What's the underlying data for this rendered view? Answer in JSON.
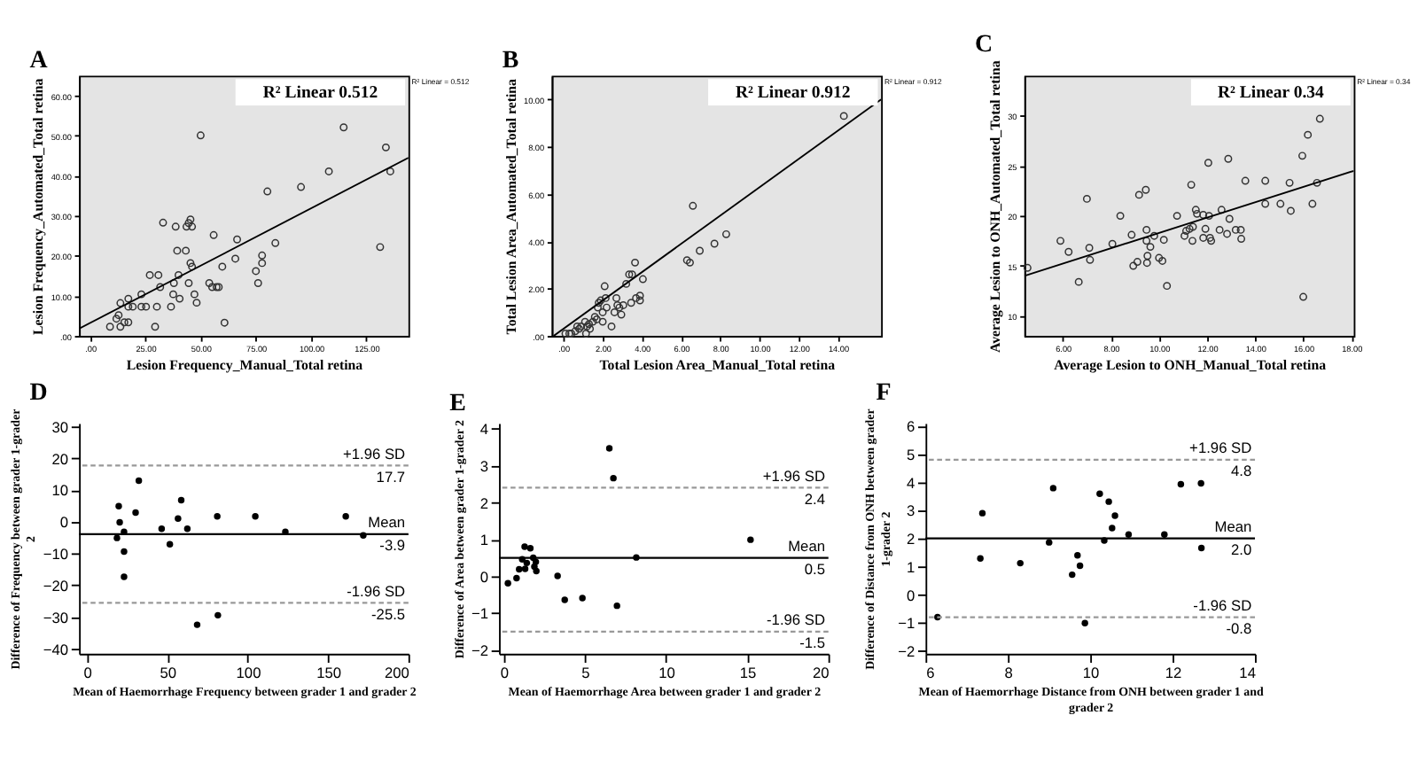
{
  "chart_data": [
    {
      "type": "scatter",
      "title": "A",
      "xlabel": "Lesion Frequency_Manual_Total retina",
      "ylabel": "Lesion Frequency_Automated_Total retina",
      "marker": "circle",
      "xlim": [
        -5,
        144
      ],
      "ylim": [
        0,
        65
      ],
      "xticks": [
        {
          "value": 0,
          "label": ".00"
        },
        {
          "value": 25,
          "label": "25.00"
        },
        {
          "value": 50,
          "label": "50.00"
        },
        {
          "value": 75,
          "label": "75.00"
        },
        {
          "value": 100,
          "label": "100.00"
        },
        {
          "value": 125,
          "label": "125.00"
        }
      ],
      "yticks": [
        {
          "value": 0,
          "label": ".00"
        },
        {
          "value": 10,
          "label": "10.00"
        },
        {
          "value": 20,
          "label": "20.00"
        },
        {
          "value": 30,
          "label": "30.00"
        },
        {
          "value": 40,
          "label": "40.00"
        },
        {
          "value": 50,
          "label": "50.00"
        },
        {
          "value": 60,
          "label": "60.00"
        }
      ],
      "series": [
        {
          "type": "scatter",
          "color": "#333333",
          "x": [
            9,
            11.9,
            12.9,
            13.7,
            13.7,
            15.5,
            17.3,
            17.3,
            17.3,
            19.3,
            23.2,
            23.2,
            25.3,
            27,
            29.4,
            30.2,
            30.9,
            31.7,
            33,
            36.6,
            37.6,
            37.9,
            38.7,
            39.4,
            40,
            40.5,
            43.3,
            43.6,
            44.6,
            45.4,
            44.6,
            45.4,
            46.1,
            46.1,
            47.2,
            48.2,
            50,
            53.9,
            55.2,
            55.9,
            57.2,
            58.2,
            59.8,
            60.8,
            65.7,
            66.5,
            75,
            76,
            77.8,
            77.8,
            80.2,
            83.8,
            95.4,
            108,
            114.7,
            131.2,
            133.8,
            135.8
          ],
          "values": [
            2.3,
            4.3,
            5.2,
            8.2,
            2.3,
            3.4,
            3.4,
            9.3,
            7.3,
            7.3,
            10.4,
            7.3,
            7.3,
            15.2,
            2.3,
            7.3,
            15.2,
            12.2,
            28.3,
            7.3,
            10.4,
            13.2,
            27.3,
            21.3,
            15.2,
            9.3,
            21.3,
            27.3,
            28.2,
            29.1,
            13.2,
            18.2,
            27.3,
            17.3,
            10.4,
            8.3,
            50.1,
            13.2,
            12.2,
            25.2,
            12.2,
            12.2,
            17.3,
            3.3,
            19.3,
            24.1,
            16.2,
            13.2,
            18.2,
            20.1,
            36.1,
            23.2,
            37.2,
            41.1,
            52.1,
            22.2,
            47.1,
            41.1
          ]
        },
        {
          "type": "line",
          "color": "#000000",
          "marker": "none",
          "x": [
            -5,
            144
          ],
          "values": [
            1.8,
            44.5
          ]
        }
      ],
      "annotations": [
        "R² Linear 0.512",
        "R² Linear = 0.512"
      ]
    },
    {
      "type": "scatter",
      "title": "B",
      "xlabel": "Total Lesion Area_Manual_Total retina",
      "ylabel": "Total Lesion Area_Automated_Total retina",
      "marker": "circle",
      "xlim": [
        -0.6,
        16.2
      ],
      "ylim": [
        0,
        11
      ],
      "xticks": [
        {
          "value": 0,
          "label": ".00"
        },
        {
          "value": 2,
          "label": "2.00"
        },
        {
          "value": 4,
          "label": "4.00"
        },
        {
          "value": 6,
          "label": "6.00"
        },
        {
          "value": 8,
          "label": "8.00"
        },
        {
          "value": 10,
          "label": "10.00"
        },
        {
          "value": 12,
          "label": "12.00"
        },
        {
          "value": 14,
          "label": "14.00"
        }
      ],
      "yticks": [
        {
          "value": 0,
          "label": ".00"
        },
        {
          "value": 2,
          "label": "2.00"
        },
        {
          "value": 4,
          "label": "4.00"
        },
        {
          "value": 6,
          "label": "6.00"
        },
        {
          "value": 8,
          "label": "8.00"
        },
        {
          "value": 10,
          "label": "10.00"
        }
      ],
      "series": [
        {
          "type": "scatter",
          "color": "#333333",
          "x": [
            0.1,
            0.3,
            0.4,
            0.6,
            0.7,
            0.8,
            0.9,
            1.1,
            1.15,
            1.2,
            1.3,
            1.35,
            1.5,
            1.6,
            1.7,
            1.75,
            1.8,
            1.9,
            2.0,
            2.0,
            2.1,
            2.15,
            2.2,
            2.45,
            2.6,
            2.7,
            2.75,
            2.85,
            2.95,
            3.05,
            3.2,
            3.35,
            3.5,
            3.65,
            3.45,
            3.7,
            3.9,
            3.9,
            4.05,
            6.3,
            6.45,
            6.95,
            6.6,
            7.7,
            8.3,
            14.3
          ],
          "values": [
            0.1,
            0.1,
            0.1,
            0.2,
            0.4,
            0.3,
            0.4,
            0.6,
            0.1,
            0.4,
            0.5,
            0.3,
            0.6,
            0.8,
            0.7,
            1.2,
            1.4,
            1.5,
            0.6,
            1.0,
            2.1,
            1.6,
            1.2,
            0.4,
            1.0,
            1.6,
            1.3,
            1.2,
            0.9,
            1.3,
            2.2,
            2.6,
            2.6,
            3.1,
            1.4,
            1.6,
            1.5,
            1.7,
            2.4,
            3.2,
            3.1,
            3.6,
            5.5,
            3.9,
            4.3,
            9.3
          ]
        },
        {
          "type": "line",
          "color": "#000000",
          "marker": "none",
          "x": [
            -0.5,
            16.2
          ],
          "values": [
            0.0,
            10.0
          ]
        }
      ],
      "annotations": [
        "R² Linear 0.912",
        "R² Linear = 0.912"
      ]
    },
    {
      "type": "scatter",
      "title": "C",
      "xlabel": "Average Lesion to ONH_Manual_Total retina",
      "ylabel": "Average Lesion to ONH_Automated_Total retina",
      "marker": "circle",
      "xlim": [
        4.4,
        18.1
      ],
      "ylim": [
        8,
        34
      ],
      "xticks": [
        {
          "value": 6,
          "label": "6.00"
        },
        {
          "value": 8,
          "label": "8.00"
        },
        {
          "value": 10,
          "label": "10.00"
        },
        {
          "value": 12,
          "label": "12.00"
        },
        {
          "value": 14,
          "label": "14.00"
        },
        {
          "value": 16,
          "label": "16.00"
        },
        {
          "value": 18,
          "label": "18.00"
        }
      ],
      "yticks": [
        10,
        15,
        20,
        25,
        30
      ],
      "series": [
        {
          "type": "scatter",
          "color": "#333333",
          "x": [
            4.53,
            5.9,
            6.24,
            6.66,
            7.0,
            7.1,
            7.13,
            8.06,
            8.39,
            8.86,
            8.93,
            9.1,
            9.17,
            9.45,
            9.48,
            9.48,
            9.5,
            9.52,
            9.64,
            9.8,
            10.0,
            10.14,
            10.2,
            10.33,
            10.75,
            11.06,
            11.13,
            11.27,
            11.34,
            11.39,
            11.41,
            11.53,
            11.58,
            11.84,
            11.84,
            11.93,
            12.05,
            12.08,
            12.12,
            12.17,
            12.52,
            12.6,
            12.83,
            12.88,
            12.93,
            13.19,
            13.4,
            13.42,
            13.59,
            14.42,
            14.42,
            15.05,
            15.43,
            15.48,
            15.96,
            16.0,
            16.19,
            16.38,
            16.57,
            16.69
          ],
          "values": [
            14.8,
            17.5,
            16.4,
            13.4,
            21.7,
            16.8,
            15.6,
            17.2,
            20.0,
            18.1,
            15.0,
            15.4,
            22.1,
            22.6,
            18.6,
            17.5,
            15.3,
            16.0,
            16.9,
            18.0,
            15.8,
            15.5,
            17.6,
            13.0,
            20.0,
            18.0,
            18.5,
            18.7,
            23.1,
            17.5,
            18.9,
            20.6,
            20.2,
            17.8,
            20.1,
            18.7,
            25.3,
            20.0,
            17.8,
            17.5,
            18.6,
            20.6,
            18.2,
            25.7,
            19.7,
            18.6,
            18.6,
            17.7,
            23.5,
            23.5,
            21.2,
            21.2,
            23.3,
            20.5,
            26.0,
            11.9,
            28.1,
            21.2,
            23.3,
            29.7
          ]
        },
        {
          "type": "line",
          "color": "#000000",
          "marker": "none",
          "x": [
            4.4,
            18.1
          ],
          "values": [
            14.0,
            24.5
          ]
        }
      ],
      "annotations": [
        "R² Linear 0.34",
        "R² Linear = 0.34"
      ]
    },
    {
      "type": "scatter",
      "title": "D",
      "xlabel": "Mean of Haemorrhage Frequency between grader 1 and grader 2",
      "ylabel": "Difference of Frequency between grader 1-grader 2",
      "marker": "circle",
      "xlim": [
        -5,
        200
      ],
      "ylim": [
        -41.5,
        31
      ],
      "xticks": [
        0,
        50,
        100,
        150,
        200
      ],
      "yticks": [
        -40,
        -30,
        -20,
        -10,
        0,
        10,
        20,
        30
      ],
      "series": [
        {
          "type": "scatter",
          "color": "#000000",
          "x": [
            18.6,
            19.7,
            20.3,
            23,
            23,
            23,
            30.2,
            32.2,
            46.4,
            51.5,
            56.6,
            58.6,
            62.4,
            68.5,
            81.4,
            81,
            104.7,
            123.4,
            161,
            171.9
          ],
          "values": [
            -5.1,
            4.9,
            -0.2,
            -3.2,
            -9.4,
            -17.3,
            2.9,
            12.9,
            -2.2,
            -7.1,
            1.0,
            6.8,
            -2.2,
            -32.4,
            -29.4,
            1.7,
            1.7,
            -3.2,
            1.7,
            -4.3
          ]
        }
      ],
      "ref_lines": [
        {
          "axis": "y",
          "value": 17.7,
          "label": "+1.96 SD",
          "color": "#999999",
          "line_style": "dashed"
        },
        {
          "axis": "y",
          "value": -3.9,
          "label": "Mean",
          "color": "#000000",
          "line_style": "solid"
        },
        {
          "axis": "y",
          "value": -25.5,
          "label": "-1.96 SD",
          "color": "#999999",
          "line_style": "dashed"
        }
      ],
      "annotations": [
        {
          "text": "17.7",
          "y": 17.7
        },
        {
          "text": "-3.9",
          "y": -3.9
        },
        {
          "text": "-25.5",
          "y": -25.5
        }
      ]
    },
    {
      "type": "scatter",
      "title": "E",
      "xlabel": "Mean of Haemorrhage Area between grader 1 and grader 2",
      "ylabel": "Difference of Area between grader 1-grader 2",
      "marker": "circle",
      "xlim": [
        -0.3,
        20
      ],
      "ylim": [
        -2.1,
        4.15
      ],
      "xticks": [
        0,
        5,
        10,
        15,
        20
      ],
      "yticks": [
        -2,
        -1,
        0,
        1,
        2,
        3,
        4
      ],
      "series": [
        {
          "type": "scatter",
          "color": "#000000",
          "x": [
            0.25,
            0.78,
            0.94,
            1.13,
            1.28,
            1.31,
            1.41,
            1.63,
            1.81,
            1.88,
            1.97,
            2.0,
            3.31,
            3.75,
            4.84,
            6.5,
            6.75,
            6.97,
            8.16,
            15.2
          ],
          "values": [
            -0.19,
            -0.05,
            0.19,
            0.46,
            0.8,
            0.2,
            0.36,
            0.76,
            0.5,
            0.26,
            0.39,
            0.14,
            0.01,
            -0.64,
            -0.59,
            3.47,
            2.66,
            -0.8,
            0.51,
            0.99
          ]
        }
      ],
      "ref_lines": [
        {
          "axis": "y",
          "value": 2.4,
          "label": "+1.96 SD",
          "color": "#999999",
          "line_style": "dashed"
        },
        {
          "axis": "y",
          "value": 0.5,
          "label": "Mean",
          "color": "#000000",
          "line_style": "solid"
        },
        {
          "axis": "y",
          "value": -1.5,
          "label": "-1.96 SD",
          "color": "#999999",
          "line_style": "dashed"
        }
      ],
      "annotations": [
        {
          "text": "2.4",
          "y": 2.4
        },
        {
          "text": "0.5",
          "y": 0.5
        },
        {
          "text": "-1.5",
          "y": -1.5
        }
      ]
    },
    {
      "type": "scatter",
      "title": "F",
      "xlabel": "Mean of Haemorrhage Distance from ONH between grader 1 and grader 2",
      "ylabel": "Difference of Distance from ONH between grader 1-grader 2",
      "marker": "circle",
      "xlim": [
        6,
        14
      ],
      "ylim": [
        -2.1,
        6.1
      ],
      "xticks": [
        6,
        8,
        10,
        12,
        14
      ],
      "yticks": [
        -2,
        -1,
        0,
        1,
        2,
        3,
        4,
        5,
        6
      ],
      "series": [
        {
          "type": "scatter",
          "color": "#000000",
          "x": [
            6.29,
            7.33,
            7.38,
            8.3,
            9.0,
            9.1,
            9.56,
            9.69,
            9.75,
            9.87,
            10.23,
            10.34,
            10.45,
            10.53,
            10.6,
            10.93,
            11.8,
            12.2,
            12.69,
            12.7
          ],
          "values": [
            -0.8,
            1.29,
            2.9,
            1.12,
            1.86,
            3.79,
            0.71,
            1.4,
            1.03,
            -1.01,
            3.59,
            1.93,
            3.31,
            2.37,
            2.81,
            2.14,
            2.14,
            3.93,
            3.96,
            1.66
          ]
        }
      ],
      "ref_lines": [
        {
          "axis": "y",
          "value": 4.8,
          "label": "+1.96 SD",
          "color": "#999999",
          "line_style": "dashed"
        },
        {
          "axis": "y",
          "value": 2.0,
          "label": "Mean",
          "color": "#000000",
          "line_style": "solid"
        },
        {
          "axis": "y",
          "value": -0.8,
          "label": "-1.96 SD",
          "color": "#999999",
          "line_style": "dashed"
        }
      ],
      "annotations": [
        {
          "text": "4.8",
          "y": 4.8
        },
        {
          "text": "2.0",
          "y": 2.0
        },
        {
          "text": "-0.8",
          "y": -0.8
        }
      ]
    }
  ]
}
